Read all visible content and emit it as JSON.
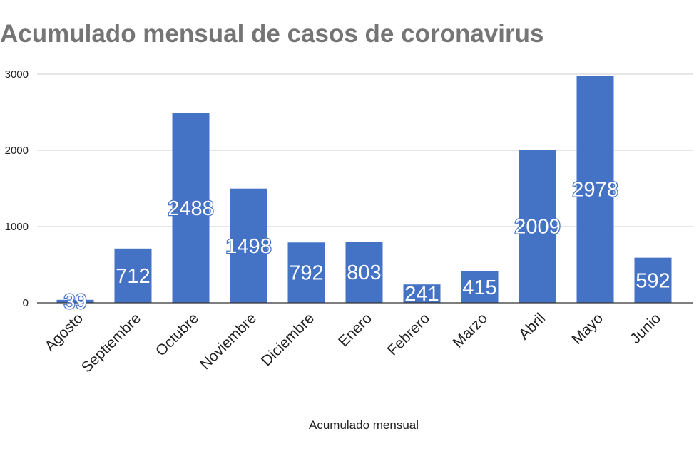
{
  "chart_data": {
    "type": "bar",
    "title": "Acumulado mensual de casos de coronavirus",
    "categories": [
      "Agosto",
      "Septiembre",
      "Octubre",
      "Noviembre",
      "Diciembre",
      "Enero",
      "Febrero",
      "Marzo",
      "Abril",
      "Mayo",
      "Junio"
    ],
    "values": [
      39,
      712,
      2488,
      1498,
      792,
      803,
      241,
      415,
      2009,
      2978,
      592
    ],
    "xlabel": "Acumulado mensual",
    "ylabel": "",
    "ylim": [
      0,
      3000
    ],
    "yticks": [
      "0",
      "1000",
      "2000",
      "3000"
    ],
    "grid": true,
    "bar_color": "#4472c4",
    "data_labels": true
  }
}
